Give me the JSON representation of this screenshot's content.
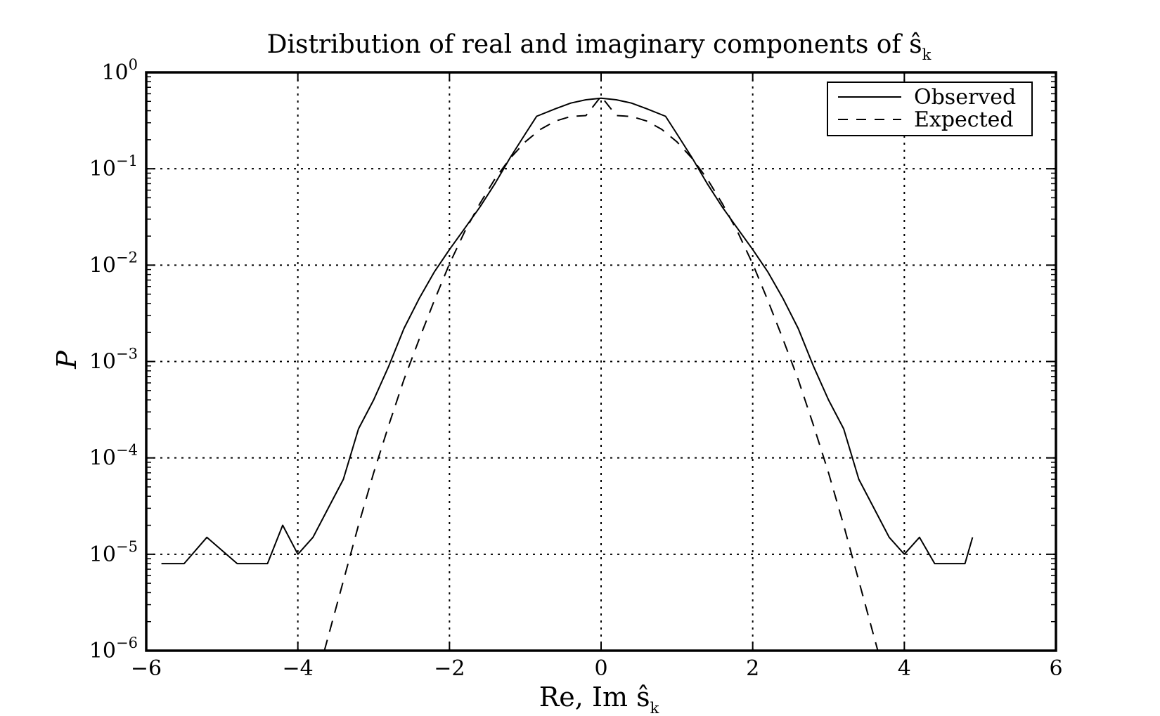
{
  "chart_data": {
    "type": "line",
    "title": "Distribution of real and imaginary components of ŝ",
    "title_sub": "k",
    "xlabel": "Re, Im ŝ",
    "xlabel_sub": "k",
    "ylabel": "P",
    "xlim": [
      -6,
      6
    ],
    "ylim": [
      1e-06,
      1
    ],
    "yscale": "log",
    "grid": true,
    "legend_position": "top-right",
    "x_ticks": [
      "−6",
      "−4",
      "−2",
      "0",
      "2",
      "4",
      "6"
    ],
    "y_ticks": [
      {
        "base": "10",
        "exp": "0"
      },
      {
        "base": "10",
        "exp": "−1"
      },
      {
        "base": "10",
        "exp": "−2"
      },
      {
        "base": "10",
        "exp": "−3"
      },
      {
        "base": "10",
        "exp": "−4"
      },
      {
        "base": "10",
        "exp": "−5"
      },
      {
        "base": "10",
        "exp": "−6"
      }
    ],
    "series": [
      {
        "name": "Observed",
        "style": "solid",
        "x": [
          -5.8,
          -5.5,
          -5.2,
          -4.8,
          -4.6,
          -4.4,
          -4.2,
          -4.0,
          -3.8,
          -3.6,
          -3.4,
          -3.2,
          -3.0,
          -2.8,
          -2.6,
          -2.4,
          -2.2,
          -2.0,
          -1.8,
          -1.6,
          -1.4,
          -1.2,
          -1.0,
          -0.85,
          -0.6,
          -0.4,
          -0.2,
          0.0,
          0.2,
          0.4,
          0.6,
          0.85,
          1.0,
          1.2,
          1.4,
          1.6,
          1.8,
          2.0,
          2.2,
          2.4,
          2.6,
          2.8,
          3.0,
          3.2,
          3.4,
          3.6,
          3.8,
          4.0,
          4.2,
          4.4,
          4.6,
          4.8,
          4.9
        ],
        "values": [
          8e-06,
          8e-06,
          1.5e-05,
          8e-06,
          8e-06,
          8e-06,
          2e-05,
          1e-05,
          1.5e-05,
          3e-05,
          6e-05,
          0.0002,
          0.0004,
          0.0009,
          0.0022,
          0.0045,
          0.0085,
          0.0145,
          0.024,
          0.04,
          0.07,
          0.13,
          0.23,
          0.35,
          0.42,
          0.48,
          0.52,
          0.54,
          0.52,
          0.48,
          0.42,
          0.35,
          0.23,
          0.13,
          0.07,
          0.04,
          0.024,
          0.0145,
          0.0085,
          0.0045,
          0.0022,
          0.0009,
          0.0004,
          0.0002,
          6e-05,
          3e-05,
          1.5e-05,
          1e-05,
          1.5e-05,
          8e-06,
          8e-06,
          8e-06,
          1.5e-05
        ]
      },
      {
        "name": "Expected",
        "style": "dashed",
        "x": [
          -3.65,
          -3.4,
          -3.2,
          -3.0,
          -2.8,
          -2.6,
          -2.4,
          -2.2,
          -2.0,
          -1.8,
          -1.6,
          -1.4,
          -1.2,
          -1.0,
          -0.8,
          -0.6,
          -0.4,
          -0.2,
          0.0,
          0.2,
          0.4,
          0.6,
          0.8,
          1.0,
          1.2,
          1.4,
          1.6,
          1.8,
          2.0,
          2.2,
          2.4,
          2.6,
          2.8,
          3.0,
          3.2,
          3.4,
          3.65
        ],
        "values": [
          1e-06,
          5.3e-06,
          2e-05,
          7e-05,
          0.00022,
          0.00065,
          0.0017,
          0.0043,
          0.0103,
          0.0222,
          0.0434,
          0.0785,
          0.1283,
          0.1903,
          0.2561,
          0.3129,
          0.3491,
          0.3562,
          0.5642,
          0.3562,
          0.3491,
          0.3129,
          0.2561,
          0.1903,
          0.1283,
          0.0785,
          0.0434,
          0.0222,
          0.0103,
          0.0043,
          0.0017,
          0.00065,
          0.00022,
          7e-05,
          2e-05,
          5.3e-06,
          1e-06
        ]
      }
    ]
  }
}
